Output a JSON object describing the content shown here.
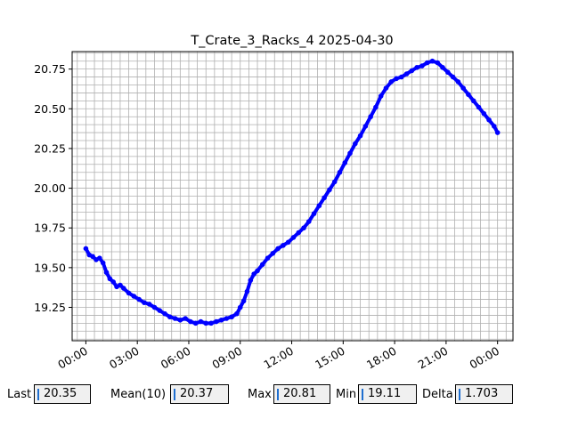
{
  "chart_data": {
    "type": "scatter",
    "title": "T_Crate_3_Racks_4 2025-04-30",
    "xlabel": "",
    "ylabel": "",
    "x_unit": "hours",
    "xlim": [
      -0.8,
      24.9
    ],
    "ylim": [
      19.04,
      20.86
    ],
    "x_ticks": [
      0,
      3,
      6,
      9,
      12,
      15,
      18,
      21,
      24
    ],
    "x_tick_labels": [
      "00:00",
      "03:00",
      "06:00",
      "09:00",
      "12:00",
      "15:00",
      "18:00",
      "21:00",
      "00:00"
    ],
    "y_ticks": [
      19.25,
      19.5,
      19.75,
      20.0,
      20.25,
      20.5,
      20.75
    ],
    "y_tick_labels": [
      "19.25",
      "19.50",
      "19.75",
      "20.00",
      "20.25",
      "20.50",
      "20.75"
    ],
    "grid": true,
    "series": [
      {
        "color": "#0000ff",
        "points": [
          [
            0.0,
            19.62
          ],
          [
            0.2,
            19.58
          ],
          [
            0.4,
            19.57
          ],
          [
            0.6,
            19.55
          ],
          [
            0.8,
            19.56
          ],
          [
            1.0,
            19.53
          ],
          [
            1.2,
            19.47
          ],
          [
            1.4,
            19.43
          ],
          [
            1.6,
            19.41
          ],
          [
            1.8,
            19.38
          ],
          [
            2.0,
            19.39
          ],
          [
            2.2,
            19.37
          ],
          [
            2.5,
            19.34
          ],
          [
            2.8,
            19.32
          ],
          [
            3.1,
            19.3
          ],
          [
            3.4,
            19.28
          ],
          [
            3.7,
            19.27
          ],
          [
            4.0,
            19.25
          ],
          [
            4.3,
            19.23
          ],
          [
            4.6,
            19.21
          ],
          [
            4.9,
            19.19
          ],
          [
            5.2,
            19.18
          ],
          [
            5.5,
            19.17
          ],
          [
            5.8,
            19.18
          ],
          [
            6.1,
            19.16
          ],
          [
            6.4,
            19.15
          ],
          [
            6.7,
            19.16
          ],
          [
            7.0,
            19.15
          ],
          [
            7.3,
            19.15
          ],
          [
            7.6,
            19.16
          ],
          [
            7.9,
            19.17
          ],
          [
            8.2,
            19.18
          ],
          [
            8.5,
            19.19
          ],
          [
            8.8,
            19.21
          ],
          [
            9.0,
            19.25
          ],
          [
            9.2,
            19.29
          ],
          [
            9.4,
            19.35
          ],
          [
            9.6,
            19.42
          ],
          [
            9.8,
            19.46
          ],
          [
            10.0,
            19.48
          ],
          [
            10.3,
            19.52
          ],
          [
            10.6,
            19.56
          ],
          [
            10.9,
            19.59
          ],
          [
            11.2,
            19.62
          ],
          [
            11.5,
            19.64
          ],
          [
            11.8,
            19.66
          ],
          [
            12.1,
            19.69
          ],
          [
            12.4,
            19.72
          ],
          [
            12.7,
            19.75
          ],
          [
            13.0,
            19.79
          ],
          [
            13.3,
            19.84
          ],
          [
            13.6,
            19.89
          ],
          [
            13.9,
            19.94
          ],
          [
            14.2,
            19.99
          ],
          [
            14.5,
            20.04
          ],
          [
            14.8,
            20.1
          ],
          [
            15.1,
            20.16
          ],
          [
            15.4,
            20.22
          ],
          [
            15.7,
            20.28
          ],
          [
            16.0,
            20.33
          ],
          [
            16.3,
            20.39
          ],
          [
            16.6,
            20.45
          ],
          [
            16.9,
            20.51
          ],
          [
            17.2,
            20.58
          ],
          [
            17.5,
            20.63
          ],
          [
            17.8,
            20.67
          ],
          [
            18.1,
            20.69
          ],
          [
            18.4,
            20.7
          ],
          [
            18.7,
            20.72
          ],
          [
            19.0,
            20.74
          ],
          [
            19.3,
            20.76
          ],
          [
            19.6,
            20.77
          ],
          [
            19.9,
            20.79
          ],
          [
            20.2,
            20.8
          ],
          [
            20.5,
            20.79
          ],
          [
            20.8,
            20.76
          ],
          [
            21.1,
            20.73
          ],
          [
            21.4,
            20.7
          ],
          [
            21.7,
            20.67
          ],
          [
            22.0,
            20.63
          ],
          [
            22.3,
            20.59
          ],
          [
            22.6,
            20.55
          ],
          [
            22.9,
            20.51
          ],
          [
            23.2,
            20.47
          ],
          [
            23.5,
            20.43
          ],
          [
            23.8,
            20.39
          ],
          [
            24.0,
            20.35
          ]
        ]
      }
    ]
  },
  "stats": {
    "last_label": "Last",
    "last_value": "20.35",
    "mean_label": "Mean(10)",
    "mean_value": "20.37",
    "max_label": "Max",
    "max_value": "20.81",
    "min_label": "Min",
    "min_value": "19.11",
    "delta_label": "Delta",
    "delta_value": "1.703"
  }
}
